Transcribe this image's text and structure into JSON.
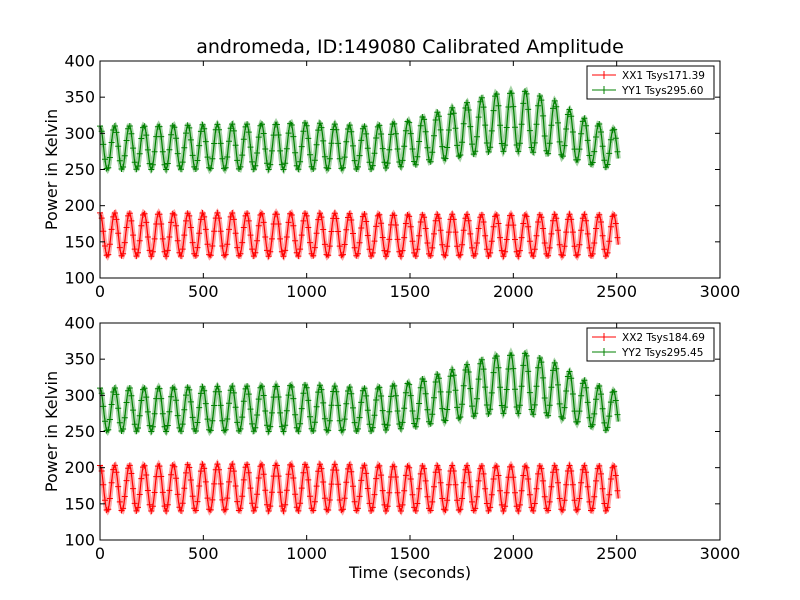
{
  "figure": {
    "title": "andromeda, ID:149080 Calibrated Amplitude",
    "ylabel": "Power in Kelvin",
    "xlabel": "Time (seconds)"
  },
  "colors": {
    "xx": "#ff0000",
    "yy": "#008000",
    "frame": "#000000"
  },
  "chart_data": [
    {
      "type": "line",
      "title": "andromeda, ID:149080 Calibrated Amplitude",
      "xlabel": "",
      "ylabel": "Power in Kelvin",
      "xlim": [
        0,
        3000
      ],
      "ylim": [
        100,
        400
      ],
      "xticks": [
        0,
        500,
        1000,
        1500,
        2000,
        2500,
        3000
      ],
      "yticks": [
        100,
        150,
        200,
        250,
        300,
        350,
        400
      ],
      "grid": false,
      "legend_position": "top-right",
      "marker": "+",
      "x_range": [
        0,
        2510
      ],
      "period": 71,
      "series": [
        {
          "name": "XX1 Tsys171.39",
          "color": "#ff0000",
          "x": [
            0,
            500,
            1000,
            1500,
            1800,
            2000,
            2200,
            2500
          ],
          "min": [
            130,
            130,
            130,
            130,
            130,
            130,
            130,
            130
          ],
          "max": [
            190,
            190,
            190,
            188,
            188,
            188,
            188,
            188
          ]
        },
        {
          "name": "YY1 Tsys295.60",
          "color": "#008000",
          "x": [
            0,
            500,
            1000,
            1300,
            1500,
            1700,
            1900,
            2050,
            2200,
            2350,
            2500
          ],
          "min": [
            250,
            250,
            250,
            250,
            255,
            265,
            275,
            275,
            270,
            258,
            250
          ],
          "max": [
            310,
            312,
            315,
            310,
            318,
            335,
            355,
            360,
            345,
            320,
            305
          ]
        }
      ]
    },
    {
      "type": "line",
      "title": "",
      "xlabel": "Time (seconds)",
      "ylabel": "Power in Kelvin",
      "xlim": [
        0,
        3000
      ],
      "ylim": [
        100,
        400
      ],
      "xticks": [
        0,
        500,
        1000,
        1500,
        2000,
        2500,
        3000
      ],
      "yticks": [
        100,
        150,
        200,
        250,
        300,
        350,
        400
      ],
      "grid": false,
      "legend_position": "top-right",
      "marker": "+",
      "x_range": [
        0,
        2510
      ],
      "period": 71,
      "series": [
        {
          "name": "XX2 Tsys184.69",
          "color": "#ff0000",
          "x": [
            0,
            500,
            1000,
            1500,
            1800,
            2000,
            2200,
            2500
          ],
          "min": [
            140,
            140,
            140,
            140,
            140,
            140,
            140,
            140
          ],
          "max": [
            203,
            205,
            205,
            203,
            203,
            203,
            203,
            203
          ]
        },
        {
          "name": "YY2 Tsys295.45",
          "color": "#008000",
          "x": [
            0,
            500,
            1000,
            1300,
            1500,
            1700,
            1900,
            2050,
            2200,
            2350,
            2500
          ],
          "min": [
            250,
            250,
            250,
            250,
            255,
            265,
            275,
            275,
            270,
            258,
            248
          ],
          "max": [
            310,
            312,
            315,
            310,
            318,
            335,
            355,
            360,
            345,
            320,
            305
          ]
        }
      ]
    }
  ]
}
